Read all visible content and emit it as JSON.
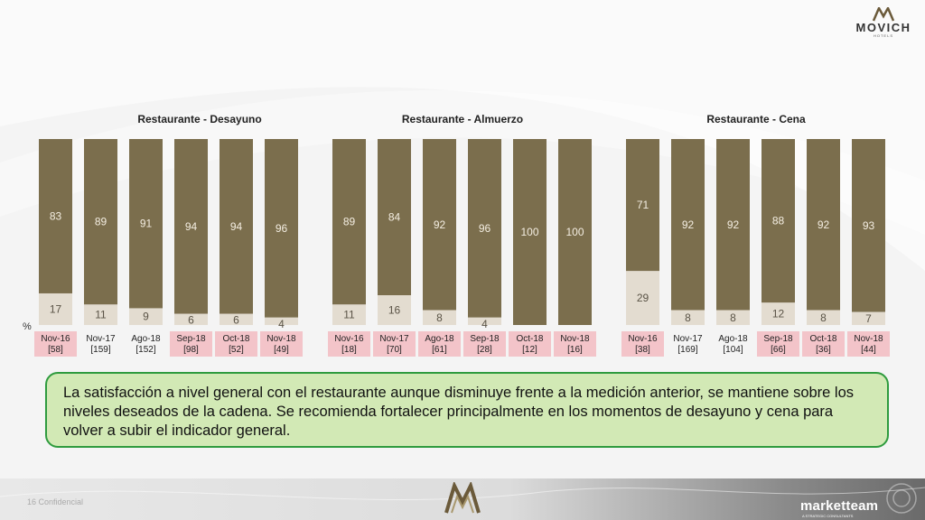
{
  "brand": {
    "top_logo_word": "MOVICH",
    "top_logo_sub": "HOTELS",
    "footer_brand": "marketteam",
    "footer_brand_sub": "A STRATEGIC CONSULTANTS",
    "footer_left": "16    Confidencial"
  },
  "percent_label": "%",
  "colors": {
    "satisfied": "#7b6e4d",
    "unsatisfied": "#e3dcd0",
    "label_bg": "#f3c4c9",
    "callout_bg": "#d2e9b5",
    "callout_border": "#2e9b3e"
  },
  "chart_data": [
    {
      "type": "bar",
      "title": "Restaurante - Desayuno",
      "categories": [
        "Nov-16",
        "Nov-17",
        "Ago-18",
        "Sep-18",
        "Oct-18",
        "Nov-18"
      ],
      "sample_sizes": [
        "[58]",
        "[159]",
        "[152]",
        "[98]",
        "[52]",
        "[49]"
      ],
      "highlight": [
        true,
        false,
        false,
        true,
        true,
        true
      ],
      "series": [
        {
          "values": [
            83,
            89,
            91,
            94,
            94,
            96
          ]
        },
        {
          "values": [
            17,
            11,
            9,
            6,
            6,
            4
          ]
        }
      ],
      "ylim": [
        0,
        100
      ]
    },
    {
      "type": "bar",
      "title": "Restaurante - Almuerzo",
      "categories": [
        "Nov-16",
        "Nov-17",
        "Ago-18",
        "Sep-18",
        "Oct-18",
        "Nov-18"
      ],
      "sample_sizes": [
        "[18]",
        "[70]",
        "[61]",
        "[28]",
        "[12]",
        "[16]"
      ],
      "highlight": [
        true,
        true,
        true,
        true,
        true,
        true
      ],
      "series": [
        {
          "values": [
            89,
            84,
            92,
            96,
            100,
            100
          ]
        },
        {
          "values": [
            11,
            16,
            8,
            4,
            0,
            0
          ]
        }
      ],
      "ylim": [
        0,
        100
      ]
    },
    {
      "type": "bar",
      "title": "Restaurante - Cena",
      "categories": [
        "Nov-16",
        "Nov-17",
        "Ago-18",
        "Sep-18",
        "Oct-18",
        "Nov-18"
      ],
      "sample_sizes": [
        "[38]",
        "[169]",
        "[104]",
        "[66]",
        "[36]",
        "[44]"
      ],
      "highlight": [
        true,
        false,
        false,
        true,
        true,
        true
      ],
      "series": [
        {
          "values": [
            71,
            92,
            92,
            88,
            92,
            93
          ]
        },
        {
          "values": [
            29,
            8,
            8,
            12,
            8,
            7
          ]
        }
      ],
      "ylim": [
        0,
        100
      ]
    }
  ],
  "callout_text": "La satisfacción a nivel general con el restaurante aunque disminuye frente a la medición anterior, se mantiene sobre los niveles deseados de la cadena. Se recomienda fortalecer principalmente en los momentos de desayuno y cena para volver a subir el indicador general."
}
